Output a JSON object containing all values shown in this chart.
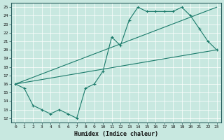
{
  "title": "",
  "xlabel": "Humidex (Indice chaleur)",
  "ylabel": "",
  "bg_color": "#c8e8e0",
  "line_color": "#1a7a6a",
  "xlim": [
    -0.5,
    23.5
  ],
  "ylim": [
    11.5,
    25.5
  ],
  "yticks": [
    12,
    13,
    14,
    15,
    16,
    17,
    18,
    19,
    20,
    21,
    22,
    23,
    24,
    25
  ],
  "xticks": [
    0,
    1,
    2,
    3,
    4,
    5,
    6,
    7,
    8,
    9,
    10,
    11,
    12,
    13,
    14,
    15,
    16,
    17,
    18,
    19,
    20,
    21,
    22,
    23
  ],
  "line1": {
    "x": [
      0,
      1,
      2,
      3,
      4,
      5,
      6,
      7,
      8,
      9,
      10,
      11,
      12,
      13,
      14,
      15,
      16,
      17,
      18,
      19,
      20,
      21,
      22,
      23
    ],
    "y": [
      16,
      15.5,
      13.5,
      13,
      12.5,
      13,
      12.5,
      12,
      15.5,
      16,
      17.5,
      21.5,
      20.5,
      23.5,
      25,
      24.5,
      24.5,
      24.5,
      24.5,
      25,
      24,
      22.5,
      21,
      20
    ]
  },
  "line2": {
    "x": [
      0,
      23
    ],
    "y": [
      16,
      20
    ]
  },
  "line3": {
    "x": [
      0,
      23
    ],
    "y": [
      16,
      25
    ]
  }
}
